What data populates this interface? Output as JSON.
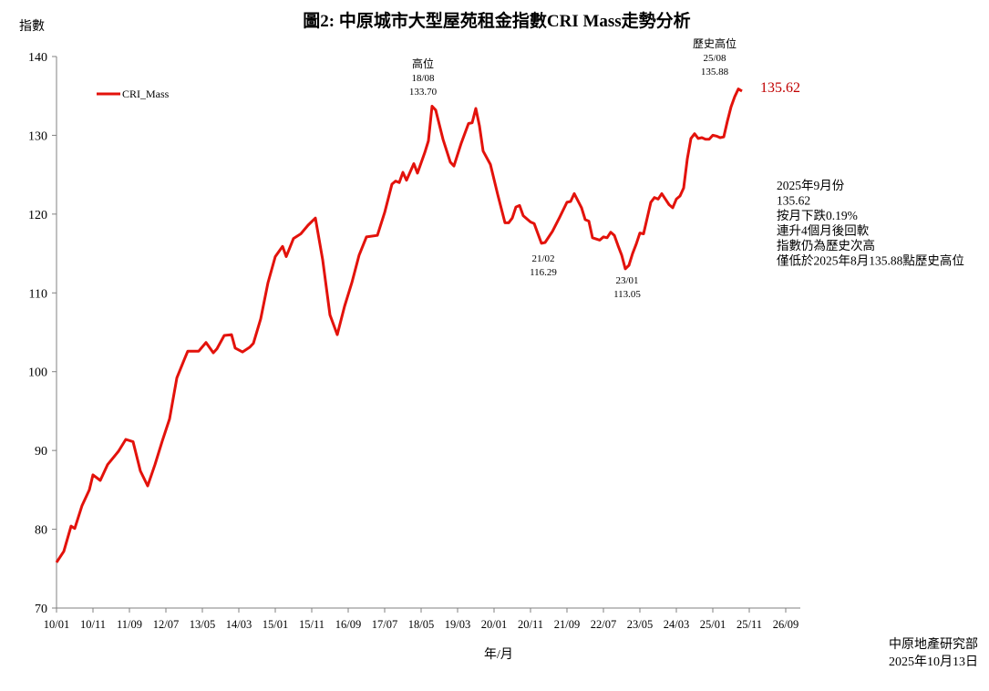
{
  "chart_data": {
    "type": "line",
    "title": "圖2: 中原城市大型屋苑租金指數CRI Mass走勢分析",
    "xlabel": "年/月",
    "ylabel": "指數",
    "ylim": [
      70,
      140
    ],
    "yticks": [
      70,
      80,
      90,
      100,
      110,
      120,
      130,
      140
    ],
    "xlim": [
      "10/01",
      "26/12"
    ],
    "xticks": [
      "10/01",
      "10/11",
      "11/09",
      "12/07",
      "13/05",
      "14/03",
      "15/01",
      "15/11",
      "16/09",
      "17/07",
      "18/05",
      "19/03",
      "20/01",
      "20/11",
      "21/09",
      "22/07",
      "23/05",
      "24/03",
      "25/01",
      "25/11",
      "26/09"
    ],
    "grid": false,
    "legend_position": "top-left",
    "series": [
      {
        "name": "CRI_Mass",
        "color": "#e3120b",
        "points": [
          [
            "10/01",
            75.8
          ],
          [
            "10/03",
            77.2
          ],
          [
            "10/05",
            80.4
          ],
          [
            "10/06",
            80.1
          ],
          [
            "10/08",
            83.0
          ],
          [
            "10/10",
            85.0
          ],
          [
            "10/11",
            86.9
          ],
          [
            "11/01",
            86.2
          ],
          [
            "11/03",
            88.2
          ],
          [
            "11/06",
            89.9
          ],
          [
            "11/08",
            91.4
          ],
          [
            "11/10",
            91.1
          ],
          [
            "11/12",
            87.4
          ],
          [
            "12/02",
            85.5
          ],
          [
            "12/04",
            88.2
          ],
          [
            "12/06",
            91.2
          ],
          [
            "12/08",
            94.0
          ],
          [
            "12/10",
            99.2
          ],
          [
            "12/12",
            101.5
          ],
          [
            "13/01",
            102.6
          ],
          [
            "13/04",
            102.6
          ],
          [
            "13/06",
            103.7
          ],
          [
            "13/08",
            102.4
          ],
          [
            "13/09",
            102.9
          ],
          [
            "13/11",
            104.6
          ],
          [
            "14/01",
            104.7
          ],
          [
            "14/02",
            103.0
          ],
          [
            "14/04",
            102.5
          ],
          [
            "14/06",
            103.1
          ],
          [
            "14/07",
            103.6
          ],
          [
            "14/09",
            106.7
          ],
          [
            "14/11",
            111.3
          ],
          [
            "15/01",
            114.6
          ],
          [
            "15/03",
            115.9
          ],
          [
            "15/04",
            114.6
          ],
          [
            "15/06",
            116.9
          ],
          [
            "15/08",
            117.5
          ],
          [
            "15/10",
            118.6
          ],
          [
            "15/12",
            119.5
          ],
          [
            "16/02",
            114.2
          ],
          [
            "16/04",
            107.2
          ],
          [
            "16/06",
            104.7
          ],
          [
            "16/08",
            108.3
          ],
          [
            "16/10",
            111.3
          ],
          [
            "16/12",
            114.8
          ],
          [
            "17/02",
            117.1
          ],
          [
            "17/05",
            117.3
          ],
          [
            "17/07",
            120.2
          ],
          [
            "17/09",
            123.8
          ],
          [
            "17/10",
            124.2
          ],
          [
            "17/11",
            124.0
          ],
          [
            "17/12",
            125.3
          ],
          [
            "18/01",
            124.3
          ],
          [
            "18/03",
            126.4
          ],
          [
            "18/04",
            125.2
          ],
          [
            "18/06",
            127.8
          ],
          [
            "18/07",
            129.3
          ],
          [
            "18/08",
            133.7
          ],
          [
            "18/09",
            133.2
          ],
          [
            "18/11",
            129.5
          ],
          [
            "19/01",
            126.6
          ],
          [
            "19/02",
            126.1
          ],
          [
            "19/04",
            129.0
          ],
          [
            "19/06",
            131.5
          ],
          [
            "19/07",
            131.6
          ],
          [
            "19/08",
            133.4
          ],
          [
            "19/09",
            131.2
          ],
          [
            "19/10",
            128.0
          ],
          [
            "19/12",
            126.3
          ],
          [
            "20/02",
            122.5
          ],
          [
            "20/04",
            118.9
          ],
          [
            "20/05",
            118.9
          ],
          [
            "20/06",
            119.5
          ],
          [
            "20/07",
            120.9
          ],
          [
            "20/08",
            121.1
          ],
          [
            "20/09",
            119.8
          ],
          [
            "20/11",
            119.0
          ],
          [
            "20/12",
            118.8
          ],
          [
            "21/02",
            116.29
          ],
          [
            "21/03",
            116.4
          ],
          [
            "21/05",
            117.8
          ],
          [
            "21/07",
            119.6
          ],
          [
            "21/09",
            121.5
          ],
          [
            "21/10",
            121.6
          ],
          [
            "21/11",
            122.6
          ],
          [
            "22/01",
            120.8
          ],
          [
            "22/02",
            119.3
          ],
          [
            "22/03",
            119.1
          ],
          [
            "22/04",
            117.0
          ],
          [
            "22/06",
            116.7
          ],
          [
            "22/07",
            117.1
          ],
          [
            "22/08",
            117.0
          ],
          [
            "22/09",
            117.7
          ],
          [
            "22/10",
            117.3
          ],
          [
            "22/11",
            116.0
          ],
          [
            "22/12",
            114.8
          ],
          [
            "23/01",
            113.05
          ],
          [
            "23/02",
            113.5
          ],
          [
            "23/03",
            115.0
          ],
          [
            "23/04",
            116.2
          ],
          [
            "23/05",
            117.6
          ],
          [
            "23/06",
            117.5
          ],
          [
            "23/07",
            119.5
          ],
          [
            "23/08",
            121.5
          ],
          [
            "23/09",
            122.1
          ],
          [
            "23/10",
            121.9
          ],
          [
            "23/11",
            122.6
          ],
          [
            "23/12",
            121.9
          ],
          [
            "24/01",
            121.2
          ],
          [
            "24/02",
            120.8
          ],
          [
            "24/03",
            121.9
          ],
          [
            "24/04",
            122.3
          ],
          [
            "24/05",
            123.3
          ],
          [
            "24/06",
            127.0
          ],
          [
            "24/07",
            129.6
          ],
          [
            "24/08",
            130.2
          ],
          [
            "24/09",
            129.6
          ],
          [
            "24/10",
            129.7
          ],
          [
            "24/11",
            129.5
          ],
          [
            "24/12",
            129.5
          ],
          [
            "25/01",
            130.0
          ],
          [
            "25/02",
            129.9
          ],
          [
            "25/03",
            129.7
          ],
          [
            "25/04",
            129.8
          ],
          [
            "25/05",
            131.8
          ],
          [
            "25/06",
            133.6
          ],
          [
            "25/07",
            134.9
          ],
          [
            "25/08",
            135.88
          ],
          [
            "25/09",
            135.62
          ]
        ]
      }
    ],
    "annotations": [
      {
        "lines": [
          "高位",
          "18/08",
          "133.70"
        ]
      },
      {
        "lines": [
          "21/02",
          "116.29"
        ]
      },
      {
        "lines": [
          "23/01",
          "113.05"
        ]
      },
      {
        "lines": [
          "歷史高位",
          "25/08",
          "135.88"
        ]
      }
    ],
    "last_value_label": "135.62",
    "commentary": [
      "2025年9月份",
      "135.62",
      "按月下跌0.19%",
      "連升4個月後回軟",
      "指數仍為歷史次高",
      "僅低於2025年8月135.88點歷史高位"
    ],
    "source": [
      "中原地產研究部",
      "2025年10月13日"
    ]
  }
}
